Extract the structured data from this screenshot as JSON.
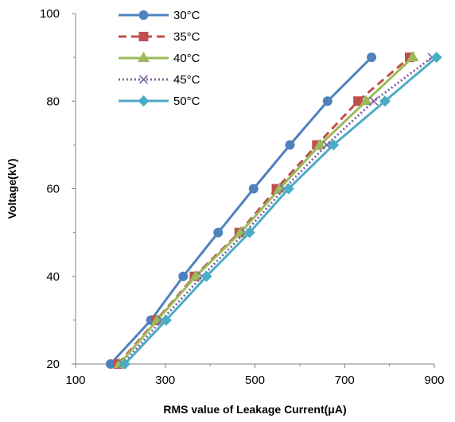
{
  "chart_data": {
    "type": "line",
    "xlabel": "RMS value of Leakage Current(μA)",
    "ylabel": "Voltage(kV)",
    "xlim": [
      100,
      900
    ],
    "ylim": [
      20,
      100
    ],
    "xticks": [
      "100",
      "300",
      "500",
      "700",
      "900"
    ],
    "yticks": [
      "20",
      "40",
      "60",
      "80",
      "100"
    ],
    "grid": false,
    "legend_position": "top-left",
    "series": [
      {
        "name": "30°C",
        "color": "#4f81bd",
        "marker": "circle",
        "dash": "solid",
        "x": [
          178,
          268,
          340,
          418,
          497,
          578,
          662,
          760
        ],
        "y": [
          20,
          30,
          40,
          50,
          60,
          70,
          80,
          90
        ]
      },
      {
        "name": "35°C",
        "color": "#c0504d",
        "marker": "square",
        "dash": "dashed",
        "x": [
          195,
          280,
          365,
          465,
          548,
          638,
          730,
          845
        ],
        "y": [
          20,
          30,
          40,
          50,
          60,
          70,
          80,
          90
        ]
      },
      {
        "name": "40°C",
        "color": "#9bbb59",
        "marker": "triangle",
        "dash": "solid",
        "x": [
          198,
          282,
          368,
          468,
          555,
          645,
          748,
          852
        ],
        "y": [
          20,
          30,
          40,
          50,
          60,
          70,
          80,
          90
        ]
      },
      {
        "name": "45°C",
        "color": "#8064a2",
        "marker": "x",
        "dash": "dotted",
        "x": [
          205,
          292,
          382,
          478,
          565,
          660,
          765,
          895
        ],
        "y": [
          20,
          30,
          40,
          50,
          60,
          70,
          80,
          90
        ]
      },
      {
        "name": "50°C",
        "color": "#4bacc6",
        "marker": "diamond",
        "dash": "solid",
        "x": [
          210,
          302,
          392,
          488,
          575,
          675,
          790,
          905
        ],
        "y": [
          20,
          30,
          40,
          50,
          60,
          70,
          80,
          90
        ]
      }
    ]
  }
}
